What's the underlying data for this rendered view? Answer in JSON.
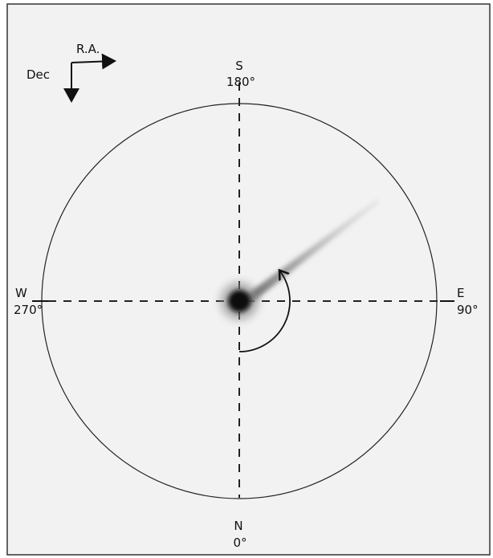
{
  "orientation": {
    "ra": "R.A.",
    "dec": "Dec"
  },
  "directions": [
    {
      "letter": "S",
      "angle": "180°"
    },
    {
      "letter": "W",
      "angle": "270°"
    },
    {
      "letter": "E",
      "angle": "90°"
    },
    {
      "letter": "N",
      "angle": "0°"
    }
  ]
}
